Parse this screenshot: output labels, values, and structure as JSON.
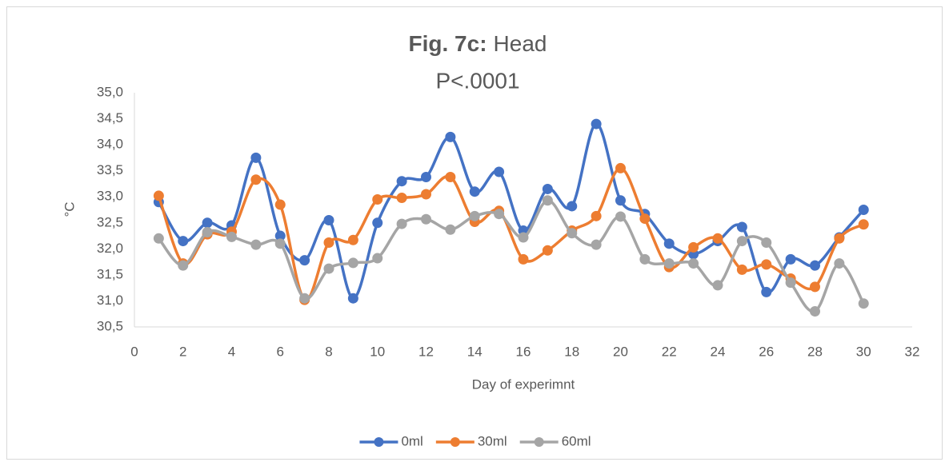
{
  "chart_data": {
    "type": "line",
    "title": {
      "bold": "Fig. 7c:",
      "text": "Head"
    },
    "subtitle": "P<.0001",
    "x_label": "Day of experimnt",
    "y_label": "°C",
    "x": [
      1,
      2,
      3,
      4,
      5,
      6,
      7,
      8,
      9,
      10,
      11,
      12,
      13,
      14,
      15,
      16,
      17,
      18,
      19,
      20,
      21,
      22,
      23,
      24,
      25,
      26,
      27,
      28,
      29,
      30
    ],
    "series": [
      {
        "name": "0ml",
        "color": "#4472c4",
        "values": [
          32.9,
          32.15,
          32.5,
          32.45,
          33.75,
          32.25,
          31.78,
          32.55,
          31.05,
          32.5,
          33.3,
          33.38,
          34.15,
          33.1,
          33.48,
          32.35,
          33.15,
          32.82,
          34.4,
          32.93,
          32.67,
          32.1,
          31.9,
          32.15,
          32.42,
          31.17,
          31.8,
          31.68,
          32.22,
          32.75
        ]
      },
      {
        "name": "30ml",
        "color": "#ed7d31",
        "values": [
          33.02,
          31.72,
          32.28,
          32.33,
          33.33,
          32.85,
          31.02,
          32.12,
          32.17,
          32.95,
          32.98,
          33.05,
          33.38,
          32.52,
          32.73,
          31.8,
          31.97,
          32.35,
          32.63,
          33.55,
          32.58,
          31.65,
          32.03,
          32.2,
          31.6,
          31.7,
          31.43,
          31.27,
          32.2,
          32.47
        ]
      },
      {
        "name": "60ml",
        "color": "#a5a5a5",
        "values": [
          32.2,
          31.68,
          32.32,
          32.23,
          32.08,
          32.1,
          31.05,
          31.62,
          31.73,
          31.82,
          32.48,
          32.57,
          32.37,
          32.63,
          32.67,
          32.22,
          32.93,
          32.3,
          32.08,
          32.62,
          31.8,
          31.72,
          31.72,
          31.3,
          32.15,
          32.12,
          31.35,
          30.8,
          31.72,
          30.95
        ]
      }
    ],
    "xlim": [
      0,
      32
    ],
    "xticks": [
      0,
      2,
      4,
      6,
      8,
      10,
      12,
      14,
      16,
      18,
      20,
      22,
      24,
      26,
      28,
      30,
      32
    ],
    "ylim": [
      30.5,
      35.0
    ],
    "yticks": [
      {
        "value": 30.5,
        "label": "30,5"
      },
      {
        "value": 31,
        "label": "31,0"
      },
      {
        "value": 31.5,
        "label": "31,5"
      },
      {
        "value": 32,
        "label": "32,0"
      },
      {
        "value": 32.5,
        "label": "32,5"
      },
      {
        "value": 33,
        "label": "33,0"
      },
      {
        "value": 33.5,
        "label": "33,5"
      },
      {
        "value": 34,
        "label": "34,0"
      },
      {
        "value": 34.5,
        "label": "34,5"
      },
      {
        "value": 35,
        "label": "35,0"
      }
    ],
    "smooth": true,
    "markers": true,
    "grid": false,
    "legend": "bottom"
  }
}
